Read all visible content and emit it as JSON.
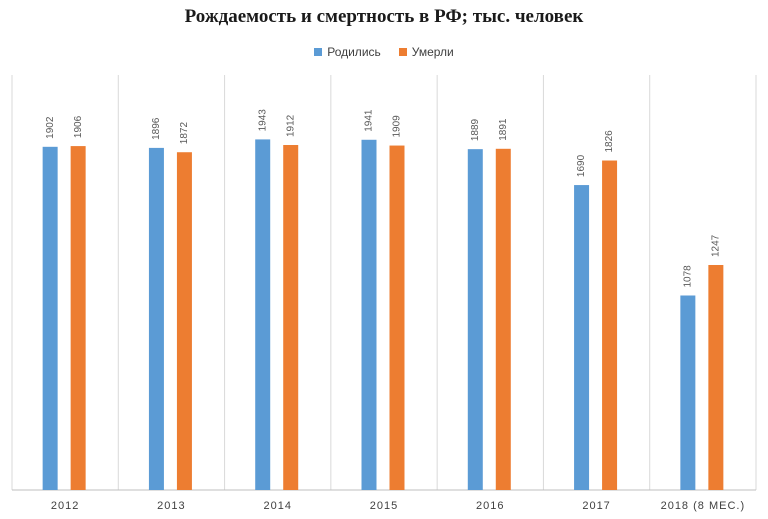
{
  "chart_data": {
    "type": "bar",
    "title": "Рождаемость и смертность в РФ; тыс. человек",
    "categories": [
      "2012",
      "2013",
      "2014",
      "2015",
      "2016",
      "2017",
      "2018 (8 МЕС.)"
    ],
    "series": [
      {
        "name": "Родились",
        "color": "#5b9bd5",
        "values": [
          1902,
          1896,
          1943,
          1941,
          1889,
          1690,
          1078
        ]
      },
      {
        "name": "Умерли",
        "color": "#ed7d31",
        "values": [
          1906,
          1872,
          1912,
          1909,
          1891,
          1826,
          1247
        ]
      }
    ],
    "ylim": [
      0,
      2300
    ],
    "grid": "vertical",
    "legend_position": "top"
  }
}
